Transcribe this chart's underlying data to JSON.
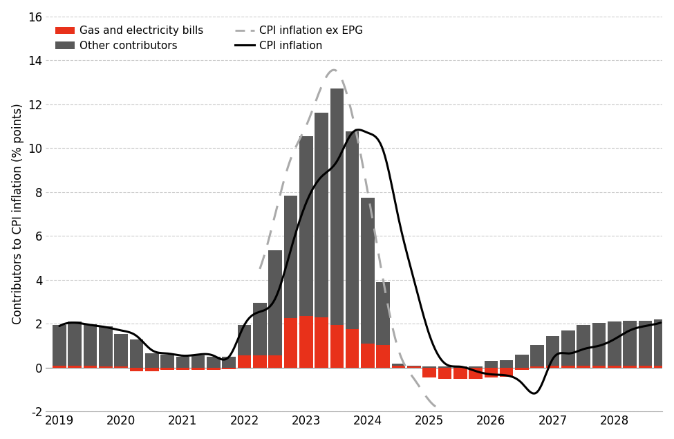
{
  "ylabel": "Contributors to CPI inflation (% points)",
  "ylim": [
    -2,
    16
  ],
  "yticks": [
    -2,
    0,
    2,
    4,
    6,
    8,
    10,
    12,
    14,
    16
  ],
  "background_color": "#ffffff",
  "grid_color": "#cccccc",
  "bar_color_other": "#595959",
  "bar_color_gas": "#e8311a",
  "line_color_cpi": "#000000",
  "line_color_cpi_ex_epg": "#aaaaaa",
  "x_positions": [
    2019.0,
    2019.25,
    2019.5,
    2019.75,
    2020.0,
    2020.25,
    2020.5,
    2020.75,
    2021.0,
    2021.25,
    2021.5,
    2021.75,
    2022.0,
    2022.25,
    2022.5,
    2022.75,
    2023.0,
    2023.25,
    2023.5,
    2023.75,
    2024.0,
    2024.25,
    2024.5,
    2024.75,
    2025.0,
    2025.25,
    2025.5,
    2025.75,
    2026.0,
    2026.25,
    2026.5,
    2026.75,
    2027.0,
    2027.25,
    2027.5,
    2027.75,
    2028.0,
    2028.25,
    2028.5,
    2028.75
  ],
  "other_contributors": [
    1.85,
    2.0,
    1.9,
    1.85,
    1.5,
    1.3,
    0.65,
    0.6,
    0.5,
    0.55,
    0.5,
    0.5,
    1.4,
    2.4,
    4.8,
    5.6,
    8.2,
    9.3,
    10.75,
    9.0,
    6.65,
    2.85,
    0.1,
    0.05,
    0.05,
    0.05,
    0.05,
    0.05,
    0.3,
    0.35,
    0.6,
    1.0,
    1.35,
    1.6,
    1.85,
    1.95,
    2.0,
    2.05,
    2.05,
    2.1
  ],
  "gas_electricity": [
    0.1,
    0.1,
    0.08,
    0.05,
    0.05,
    -0.15,
    -0.15,
    -0.1,
    -0.1,
    -0.1,
    -0.1,
    -0.05,
    0.55,
    0.55,
    0.55,
    2.25,
    2.35,
    2.3,
    1.95,
    1.75,
    1.1,
    1.05,
    0.1,
    0.05,
    -0.45,
    -0.5,
    -0.5,
    -0.5,
    -0.45,
    -0.4,
    -0.1,
    0.05,
    0.1,
    0.1,
    0.1,
    0.1,
    0.1,
    0.1,
    0.1,
    0.1
  ],
  "cpi_inflation": [
    1.9,
    2.05,
    1.95,
    1.85,
    1.7,
    1.45,
    0.8,
    0.65,
    0.55,
    0.6,
    0.55,
    0.5,
    1.95,
    2.55,
    3.15,
    5.35,
    7.5,
    8.7,
    9.4,
    10.7,
    10.7,
    9.9,
    6.8,
    4.0,
    1.5,
    0.2,
    0.05,
    -0.15,
    -0.3,
    -0.35,
    -0.7,
    -1.1,
    0.4,
    0.65,
    0.85,
    1.0,
    1.3,
    1.7,
    1.9,
    2.05
  ],
  "cpi_ex_epg_x": [
    2022.25,
    2022.5,
    2022.75,
    2023.0,
    2023.25,
    2023.5,
    2023.75,
    2024.0,
    2024.25,
    2024.5,
    2024.75,
    2025.0,
    2025.25
  ],
  "cpi_ex_epg_y": [
    4.5,
    7.0,
    9.5,
    11.0,
    12.8,
    13.5,
    11.5,
    8.0,
    4.0,
    0.8,
    -0.5,
    -1.5,
    -1.8
  ],
  "legend_labels": [
    "Gas and electricity bills",
    "Other contributors",
    "CPI inflation ex EPG",
    "CPI inflation"
  ],
  "xticks": [
    2019,
    2020,
    2021,
    2022,
    2023,
    2024,
    2025,
    2026,
    2027,
    2028
  ]
}
